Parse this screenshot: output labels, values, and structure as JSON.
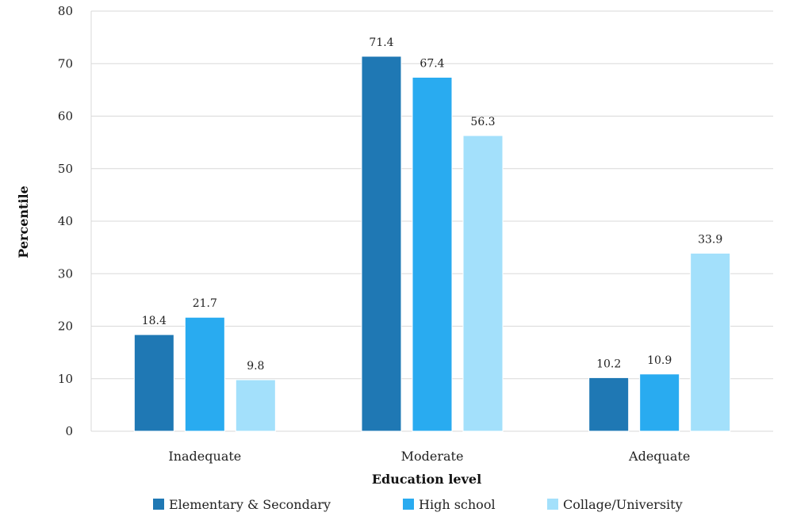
{
  "chart_data": {
    "type": "bar",
    "xlabel": "Education level",
    "ylabel": "Percentile",
    "ylim": [
      0,
      80
    ],
    "yticks": [
      0,
      10,
      20,
      30,
      40,
      50,
      60,
      70,
      80
    ],
    "grid": true,
    "legend_position": "bottom",
    "categories": [
      "Inadequate",
      "Moderate",
      "Adequate"
    ],
    "series": [
      {
        "name": "Elementary & Secondary",
        "color": "#1f78b4",
        "values": [
          18.4,
          71.4,
          10.2
        ],
        "labels": [
          "18.4",
          "71.4",
          "10.2"
        ]
      },
      {
        "name": "High school",
        "color": "#29abf0",
        "values": [
          21.7,
          67.4,
          10.9
        ],
        "labels": [
          "21.7",
          "67.4",
          "10.9"
        ]
      },
      {
        "name": "Collage/University",
        "color": "#a3e0fb",
        "values": [
          9.8,
          56.3,
          33.9
        ],
        "labels": [
          "9.8",
          "56.3",
          "33.9"
        ]
      }
    ]
  }
}
